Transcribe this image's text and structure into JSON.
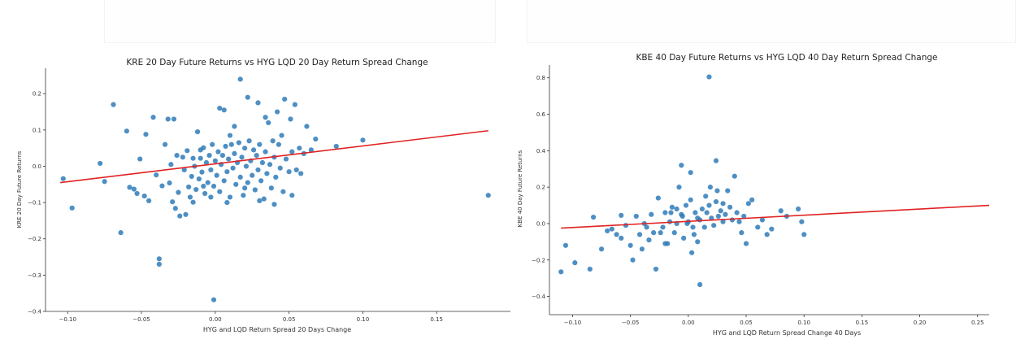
{
  "chart_data": [
    {
      "type": "scatter",
      "title": "KRE 20 Day Future Returns vs HYG LQD 20 Day Return Spread Change",
      "xlabel": "HYG and LQD Return Spread 20 Days Change",
      "ylabel": "KRE 20 Day Future Returns",
      "xlim": [
        -0.115,
        0.2
      ],
      "ylim": [
        -0.4,
        0.27
      ],
      "xticks": [
        -0.1,
        -0.05,
        0.0,
        0.05,
        0.1,
        0.15
      ],
      "xtick_labels": [
        "−0.10",
        "−0.05",
        "0.00",
        "0.05",
        "0.10",
        "0.15"
      ],
      "yticks": [
        -0.4,
        -0.3,
        -0.2,
        -0.1,
        0.0,
        0.1,
        0.2
      ],
      "ytick_labels": [
        "−0.4",
        "−0.3",
        "−0.2",
        "−0.1",
        "0.0",
        "0.1",
        "0.2"
      ],
      "grid": false,
      "point_color": "#2f7bb8",
      "line_color": "#e02222",
      "regression": {
        "x": [
          -0.105,
          0.185
        ],
        "y": [
          -0.045,
          0.098
        ]
      },
      "series": [
        {
          "points": [
            [
              -0.103,
              -0.034
            ],
            [
              -0.097,
              -0.115
            ],
            [
              -0.078,
              0.008
            ],
            [
              -0.075,
              -0.042
            ],
            [
              -0.069,
              0.17
            ],
            [
              -0.064,
              -0.183
            ],
            [
              -0.06,
              0.097
            ],
            [
              -0.058,
              -0.058
            ],
            [
              -0.055,
              -0.063
            ],
            [
              -0.051,
              0.02
            ],
            [
              -0.048,
              -0.082
            ],
            [
              -0.047,
              0.088
            ],
            [
              -0.045,
              -0.095
            ],
            [
              -0.042,
              0.135
            ],
            [
              -0.04,
              -0.024
            ],
            [
              -0.038,
              -0.255
            ],
            [
              -0.038,
              -0.27
            ],
            [
              -0.036,
              -0.054
            ],
            [
              -0.034,
              0.06
            ],
            [
              -0.032,
              0.13
            ],
            [
              -0.031,
              -0.046
            ],
            [
              -0.03,
              0.005
            ],
            [
              -0.029,
              -0.098
            ],
            [
              -0.027,
              -0.116
            ],
            [
              -0.026,
              0.03
            ],
            [
              -0.025,
              -0.072
            ],
            [
              -0.024,
              -0.137
            ],
            [
              -0.022,
              0.025
            ],
            [
              -0.021,
              -0.01
            ],
            [
              -0.02,
              -0.133
            ],
            [
              -0.019,
              0.043
            ],
            [
              -0.018,
              -0.057
            ],
            [
              -0.017,
              -0.085
            ],
            [
              -0.016,
              -0.028
            ],
            [
              -0.015,
              0.022
            ],
            [
              -0.014,
              0.0
            ],
            [
              -0.013,
              -0.064
            ],
            [
              -0.012,
              0.095
            ],
            [
              -0.011,
              -0.035
            ],
            [
              -0.01,
              0.022
            ],
            [
              -0.009,
              -0.016
            ],
            [
              -0.008,
              0.051
            ],
            [
              -0.007,
              -0.075
            ],
            [
              -0.006,
              0.01
            ],
            [
              -0.005,
              -0.045
            ],
            [
              -0.004,
              0.03
            ],
            [
              -0.003,
              -0.01
            ],
            [
              -0.002,
              0.06
            ],
            [
              -0.001,
              -0.055
            ],
            [
              0.0,
              0.015
            ],
            [
              0.001,
              -0.025
            ],
            [
              0.002,
              0.04
            ],
            [
              0.003,
              -0.07
            ],
            [
              0.004,
              0.005
            ],
            [
              0.005,
              0.03
            ],
            [
              0.006,
              -0.04
            ],
            [
              0.007,
              0.055
            ],
            [
              0.008,
              -0.015
            ],
            [
              0.009,
              0.02
            ],
            [
              0.01,
              -0.085
            ],
            [
              0.011,
              0.06
            ],
            [
              0.012,
              -0.005
            ],
            [
              0.013,
              0.035
            ],
            [
              0.014,
              -0.05
            ],
            [
              0.015,
              0.01
            ],
            [
              0.016,
              0.065
            ],
            [
              0.017,
              -0.03
            ],
            [
              0.018,
              0.025
            ],
            [
              0.019,
              -0.08
            ],
            [
              0.02,
              0.05
            ],
            [
              0.021,
              0.0
            ],
            [
              0.022,
              -0.045
            ],
            [
              0.023,
              0.07
            ],
            [
              0.024,
              0.015
            ],
            [
              0.025,
              -0.025
            ],
            [
              0.026,
              0.045
            ],
            [
              0.027,
              -0.065
            ],
            [
              0.028,
              0.03
            ],
            [
              0.029,
              -0.01
            ],
            [
              0.03,
              0.06
            ],
            [
              0.031,
              -0.04
            ],
            [
              0.032,
              0.01
            ],
            [
              0.033,
              -0.09
            ],
            [
              0.034,
              0.04
            ],
            [
              0.035,
              -0.02
            ],
            [
              0.036,
              0.12
            ],
            [
              0.037,
              0.005
            ],
            [
              0.038,
              -0.06
            ],
            [
              0.039,
              0.07
            ],
            [
              0.04,
              0.025
            ],
            [
              0.041,
              -0.03
            ],
            [
              0.042,
              0.15
            ],
            [
              0.043,
              0.06
            ],
            [
              0.044,
              -0.005
            ],
            [
              0.045,
              0.085
            ],
            [
              0.046,
              -0.07
            ],
            [
              0.048,
              0.02
            ],
            [
              0.05,
              -0.015
            ],
            [
              0.052,
              0.04
            ],
            [
              0.054,
              0.17
            ],
            [
              0.055,
              -0.01
            ],
            [
              0.057,
              0.05
            ],
            [
              0.058,
              -0.02
            ],
            [
              0.06,
              0.035
            ],
            [
              0.062,
              0.11
            ],
            [
              0.003,
              0.16
            ],
            [
              0.006,
              0.155
            ],
            [
              0.013,
              0.11
            ],
            [
              0.017,
              0.24
            ],
            [
              0.022,
              0.19
            ],
            [
              0.029,
              0.175
            ],
            [
              0.034,
              0.135
            ],
            [
              0.047,
              0.185
            ],
            [
              0.051,
              0.13
            ],
            [
              0.065,
              0.045
            ],
            [
              0.068,
              0.075
            ],
            [
              0.082,
              0.055
            ],
            [
              0.1,
              0.072
            ],
            [
              0.185,
              -0.08
            ],
            [
              -0.008,
              -0.055
            ],
            [
              -0.015,
              -0.099
            ],
            [
              -0.003,
              -0.085
            ],
            [
              0.008,
              -0.1
            ],
            [
              0.02,
              -0.06
            ],
            [
              0.03,
              -0.095
            ],
            [
              0.04,
              -0.105
            ],
            [
              0.052,
              -0.08
            ],
            [
              -0.001,
              -0.368
            ],
            [
              -0.028,
              0.13
            ],
            [
              -0.053,
              -0.075
            ],
            [
              0.01,
              0.085
            ],
            [
              -0.01,
              0.045
            ]
          ]
        }
      ]
    },
    {
      "type": "scatter",
      "title": "KBE 40 Day Future Returns vs HYG LQD 40 Day Return Spread Change",
      "xlabel": "HYG and LQD Return Spread Change 40 Days",
      "ylabel": "KBE 40 Day Future Returns",
      "xlim": [
        -0.12,
        0.26
      ],
      "ylim": [
        -0.5,
        0.87
      ],
      "xticks": [
        -0.1,
        -0.05,
        0.0,
        0.05,
        0.1,
        0.15,
        0.2,
        0.25
      ],
      "xtick_labels": [
        "−0.10",
        "−0.05",
        "0.00",
        "0.05",
        "0.10",
        "0.15",
        "0.20",
        "0.25"
      ],
      "yticks": [
        -0.4,
        -0.2,
        0.0,
        0.2,
        0.4,
        0.6,
        0.8
      ],
      "ytick_labels": [
        "−0.4",
        "−0.2",
        "0.0",
        "0.2",
        "0.4",
        "0.6",
        "0.8"
      ],
      "grid": false,
      "point_color": "#2f7bb8",
      "line_color": "#e02222",
      "regression": {
        "x": [
          -0.11,
          0.26
        ],
        "y": [
          -0.025,
          0.1
        ]
      },
      "series": [
        {
          "points": [
            [
              -0.11,
              -0.265
            ],
            [
              -0.106,
              -0.12
            ],
            [
              -0.098,
              -0.215
            ],
            [
              -0.085,
              -0.25
            ],
            [
              -0.082,
              0.035
            ],
            [
              -0.075,
              -0.14
            ],
            [
              -0.07,
              -0.04
            ],
            [
              -0.066,
              -0.03
            ],
            [
              -0.062,
              -0.06
            ],
            [
              -0.058,
              -0.08
            ],
            [
              -0.058,
              0.045
            ],
            [
              -0.054,
              -0.01
            ],
            [
              -0.05,
              -0.12
            ],
            [
              -0.048,
              -0.2
            ],
            [
              -0.045,
              0.04
            ],
            [
              -0.042,
              -0.06
            ],
            [
              -0.04,
              -0.14
            ],
            [
              -0.038,
              0.0
            ],
            [
              -0.036,
              -0.02
            ],
            [
              -0.034,
              -0.09
            ],
            [
              -0.032,
              0.05
            ],
            [
              -0.03,
              -0.05
            ],
            [
              -0.028,
              -0.25
            ],
            [
              -0.026,
              0.14
            ],
            [
              -0.024,
              -0.05
            ],
            [
              -0.022,
              -0.02
            ],
            [
              -0.02,
              0.06
            ],
            [
              -0.018,
              -0.11
            ],
            [
              -0.016,
              0.01
            ],
            [
              -0.014,
              0.09
            ],
            [
              -0.012,
              -0.05
            ],
            [
              -0.01,
              0.0
            ],
            [
              -0.008,
              0.2
            ],
            [
              -0.006,
              0.05
            ],
            [
              -0.004,
              -0.08
            ],
            [
              -0.002,
              0.1
            ],
            [
              0.0,
              0.01
            ],
            [
              0.002,
              0.13
            ],
            [
              0.004,
              -0.02
            ],
            [
              0.006,
              0.06
            ],
            [
              0.008,
              -0.1
            ],
            [
              0.01,
              0.02
            ],
            [
              0.012,
              0.08
            ],
            [
              0.014,
              -0.02
            ],
            [
              0.016,
              0.06
            ],
            [
              0.018,
              0.1
            ],
            [
              0.02,
              0.03
            ],
            [
              0.022,
              -0.01
            ],
            [
              0.024,
              0.12
            ],
            [
              0.026,
              0.04
            ],
            [
              0.028,
              0.07
            ],
            [
              0.03,
              0.01
            ],
            [
              0.032,
              0.05
            ],
            [
              0.034,
              0.18
            ],
            [
              0.036,
              0.09
            ],
            [
              0.038,
              0.02
            ],
            [
              0.04,
              0.26
            ],
            [
              0.042,
              0.06
            ],
            [
              0.044,
              0.01
            ],
            [
              0.046,
              -0.05
            ],
            [
              0.048,
              0.04
            ],
            [
              0.05,
              -0.11
            ],
            [
              0.052,
              0.11
            ],
            [
              0.055,
              0.13
            ],
            [
              0.06,
              -0.02
            ],
            [
              0.064,
              0.02
            ],
            [
              0.068,
              -0.06
            ],
            [
              0.072,
              -0.03
            ],
            [
              0.08,
              0.07
            ],
            [
              0.085,
              0.04
            ],
            [
              0.095,
              0.08
            ],
            [
              0.098,
              0.01
            ],
            [
              0.1,
              -0.06
            ],
            [
              0.018,
              0.805
            ],
            [
              0.024,
              0.345
            ],
            [
              -0.006,
              0.32
            ],
            [
              0.002,
              0.28
            ],
            [
              0.019,
              0.2
            ],
            [
              0.01,
              -0.335
            ],
            [
              0.003,
              -0.16
            ],
            [
              -0.001,
              0.0
            ],
            [
              -0.015,
              0.06
            ],
            [
              0.008,
              0.03
            ],
            [
              -0.02,
              -0.11
            ],
            [
              0.015,
              0.15
            ],
            [
              0.025,
              0.18
            ],
            [
              -0.01,
              0.08
            ],
            [
              0.005,
              -0.06
            ],
            [
              0.03,
              0.11
            ],
            [
              -0.005,
              0.04
            ]
          ]
        }
      ]
    }
  ]
}
